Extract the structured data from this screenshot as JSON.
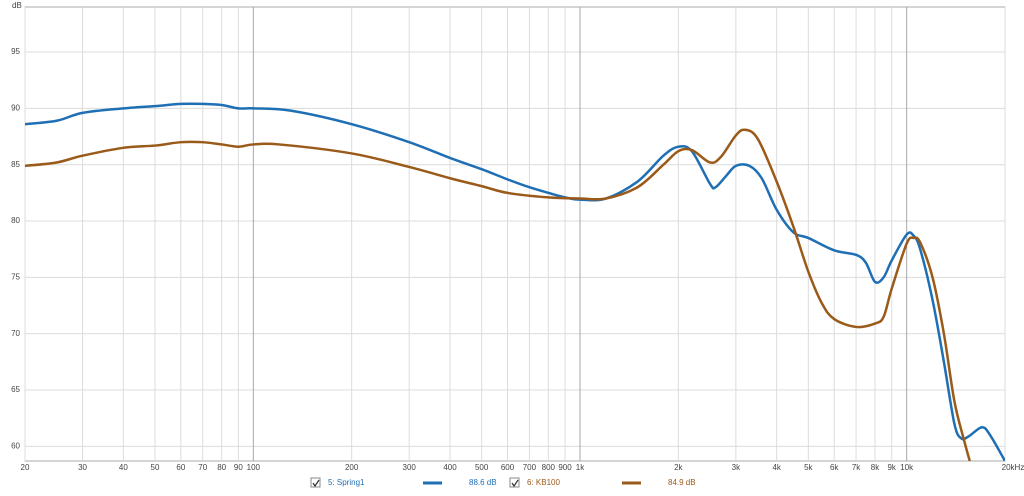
{
  "chart_data": {
    "type": "line",
    "ylabel": "dB",
    "xlog": true,
    "xlim": [
      20,
      20000
    ],
    "ylim": [
      58.7,
      99
    ],
    "xticks": [
      20,
      30,
      40,
      50,
      60,
      70,
      80,
      90,
      100,
      200,
      300,
      400,
      500,
      600,
      700,
      800,
      900,
      {
        "value": 1000,
        "label": "1k"
      },
      {
        "value": 2000,
        "label": "2k"
      },
      {
        "value": 3000,
        "label": "3k"
      },
      {
        "value": 4000,
        "label": "4k"
      },
      {
        "value": 5000,
        "label": "5k"
      },
      {
        "value": 6000,
        "label": "6k"
      },
      {
        "value": 7000,
        "label": "7k"
      },
      {
        "value": 8000,
        "label": "8k"
      },
      {
        "value": 9000,
        "label": "9k"
      },
      {
        "value": 10000,
        "label": "10k"
      },
      {
        "value": 20000,
        "label": "20kHz"
      }
    ],
    "major_xticks": [
      100,
      1000,
      10000
    ],
    "yticks": [
      60,
      65,
      70,
      75,
      80,
      85,
      90,
      95
    ],
    "grid": true,
    "series": [
      {
        "name": "5: Spring1",
        "level": "88.6 dB",
        "color": "#1f6fb5",
        "x": [
          20,
          25,
          30,
          40,
          50,
          60,
          70,
          80,
          90,
          100,
          130,
          200,
          300,
          400,
          500,
          600,
          700,
          800,
          900,
          1000,
          1200,
          1500,
          1800,
          2000,
          2200,
          2500,
          2600,
          2800,
          3000,
          3300,
          3600,
          4000,
          4500,
          5000,
          6000,
          7000,
          7500,
          8000,
          8500,
          9000,
          10000,
          10500,
          11000,
          12000,
          13000,
          14000,
          14700,
          15500,
          17000,
          18000,
          20000
        ],
        "values": [
          88.6,
          88.9,
          89.6,
          90.0,
          90.2,
          90.4,
          90.4,
          90.3,
          90.0,
          90.0,
          89.8,
          88.6,
          87.0,
          85.6,
          84.6,
          83.7,
          83.0,
          82.5,
          82.1,
          81.9,
          82.0,
          83.5,
          85.8,
          86.6,
          86.2,
          83.3,
          83.0,
          84.0,
          84.9,
          84.9,
          83.8,
          81.0,
          79.0,
          78.5,
          77.4,
          77.0,
          76.3,
          74.6,
          75.0,
          76.5,
          78.8,
          78.7,
          77.5,
          73.0,
          67.5,
          62.0,
          60.7,
          60.9,
          61.7,
          61.0,
          58.7
        ]
      },
      {
        "name": "6: KB100",
        "level": "84.9 dB",
        "color": "#9a5a1a",
        "x": [
          20,
          25,
          30,
          40,
          50,
          60,
          70,
          80,
          90,
          100,
          120,
          200,
          300,
          400,
          500,
          600,
          800,
          1000,
          1200,
          1500,
          1800,
          2000,
          2200,
          2500,
          2700,
          3000,
          3200,
          3500,
          4000,
          4500,
          5000,
          5500,
          6000,
          7000,
          8000,
          8500,
          9000,
          10000,
          10500,
          11000,
          12000,
          13000,
          14000,
          15000,
          15600
        ],
        "values": [
          84.9,
          85.2,
          85.8,
          86.5,
          86.7,
          87.0,
          87.0,
          86.8,
          86.6,
          86.8,
          86.8,
          86.0,
          84.8,
          83.8,
          83.1,
          82.5,
          82.1,
          82.0,
          82.0,
          83.0,
          85.0,
          86.2,
          86.3,
          85.2,
          85.7,
          87.6,
          88.1,
          87.3,
          83.5,
          79.5,
          75.5,
          72.7,
          71.3,
          70.6,
          70.9,
          71.5,
          74.0,
          78.0,
          78.5,
          78.1,
          75.0,
          70.0,
          64.0,
          60.5,
          58.7
        ]
      }
    ]
  }
}
